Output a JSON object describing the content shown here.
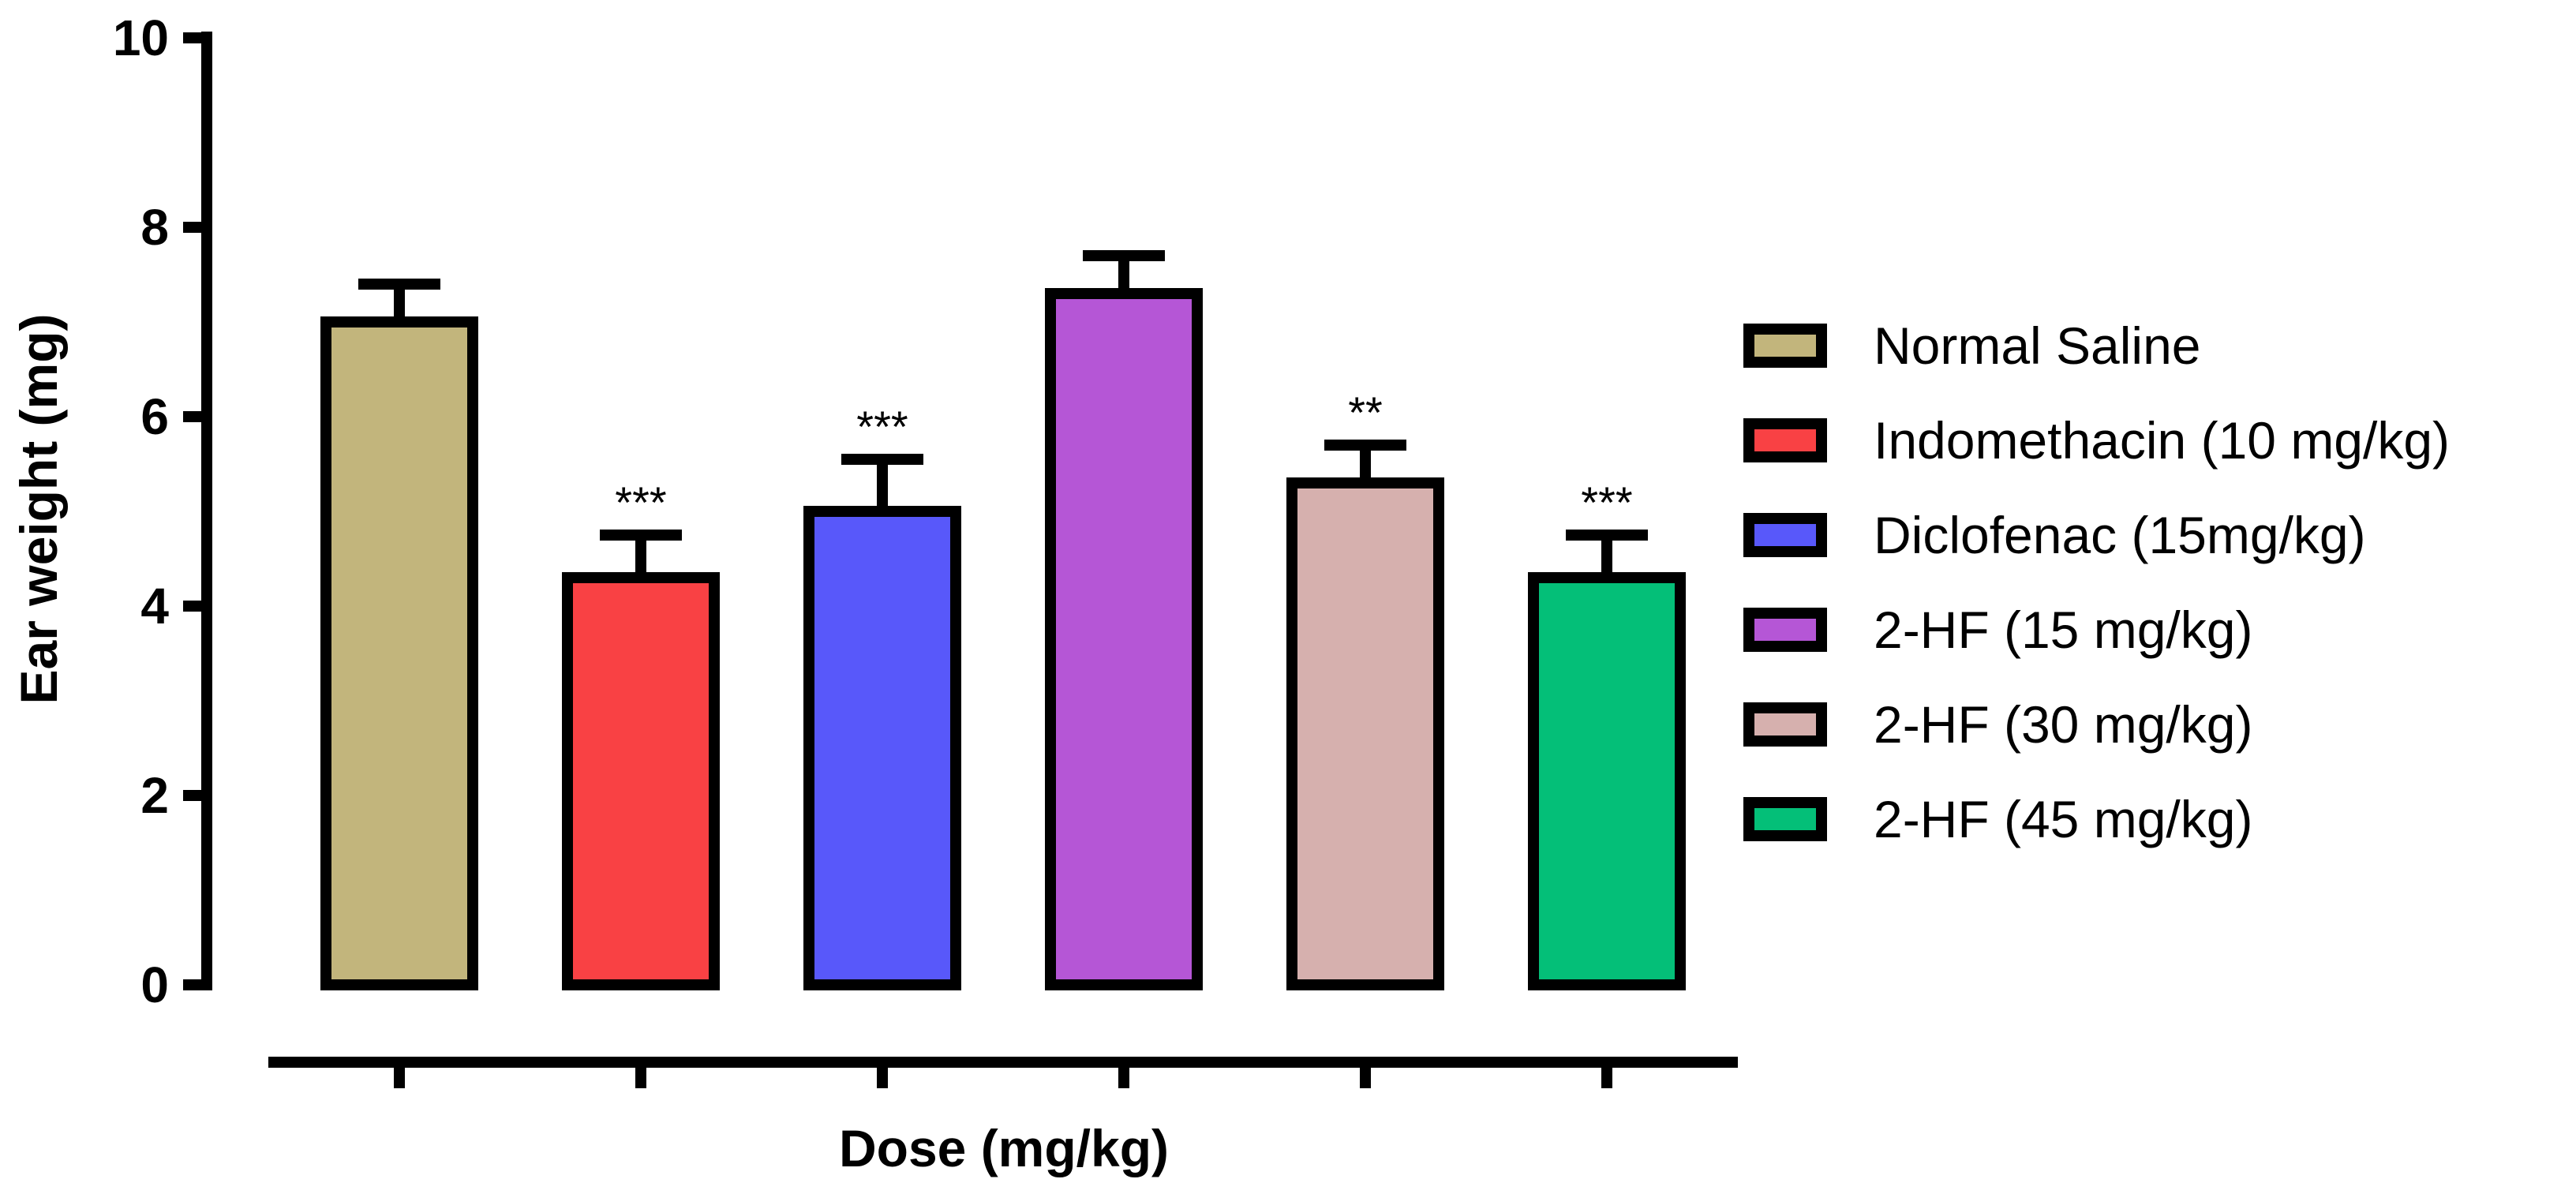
{
  "chart_data": {
    "type": "bar",
    "title": "",
    "xlabel": "Dose (mg/kg)",
    "ylabel": "Ear weight (mg)",
    "ylim": [
      0,
      10
    ],
    "yticks": [
      0,
      2,
      4,
      6,
      8,
      10
    ],
    "categories": [
      "Normal Saline",
      "Indomethacin (10 mg/kg)",
      "Diclofenac (15mg/kg)",
      "2-HF (15 mg/kg)",
      "2-HF (30 mg/kg)",
      "2-HF (45 mg/kg)"
    ],
    "values": [
      7.0,
      4.3,
      5.0,
      7.3,
      5.3,
      4.3
    ],
    "errors": [
      0.4,
      0.45,
      0.55,
      0.4,
      0.4,
      0.45
    ],
    "colors": [
      "#c2b57c",
      "#f94144",
      "#5858fa",
      "#b556d6",
      "#d6b0ae",
      "#04bf78"
    ],
    "annotations": [
      "",
      "***",
      "***",
      "",
      "**",
      "***"
    ],
    "legend": {
      "position": "right",
      "entries": [
        "Normal Saline",
        "Indomethacin (10 mg/kg)",
        "Diclofenac (15mg/kg)",
        "2-HF (15 mg/kg)",
        "2-HF (30 mg/kg)",
        "2-HF (45 mg/kg)"
      ]
    },
    "grid": false
  }
}
